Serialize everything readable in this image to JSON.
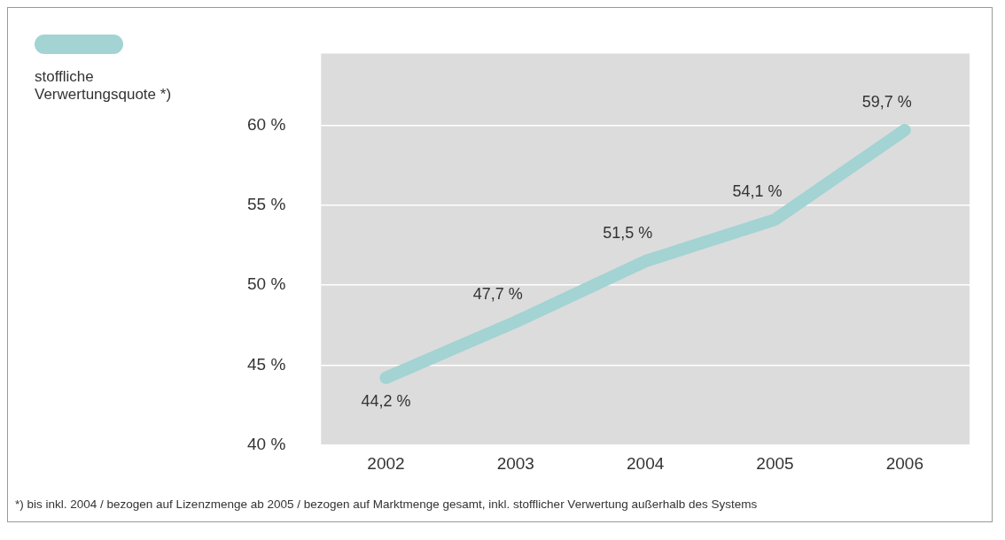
{
  "chart_data": {
    "type": "line",
    "categories": [
      "2002",
      "2003",
      "2004",
      "2005",
      "2006"
    ],
    "series": [
      {
        "name": "stoffliche Verwertungsquote *)",
        "color": "#a3d3d3",
        "values": [
          44.2,
          47.7,
          51.5,
          54.1,
          59.7
        ],
        "value_labels": [
          "44,2 %",
          "47,7 %",
          "51,5 %",
          "54,1 %",
          "59,7 %"
        ]
      }
    ],
    "ylim": [
      40,
      64.5
    ],
    "yticks": [
      {
        "value": 40,
        "label": "40 %"
      },
      {
        "value": 45,
        "label": "45 %"
      },
      {
        "value": 50,
        "label": "50 %"
      },
      {
        "value": 55,
        "label": "55 %"
      },
      {
        "value": 60,
        "label": "60 %"
      }
    ],
    "grid": "y",
    "legend": "top left",
    "marker": "none",
    "line_style": "solid",
    "annotations": [
      "*) bis inkl. 2004 / bezogen auf Lizenzmenge ab 2005 / bezogen auf Marktmenge gesamt, inkl. stofflicher Verwertung außerhalb des Systems"
    ]
  }
}
